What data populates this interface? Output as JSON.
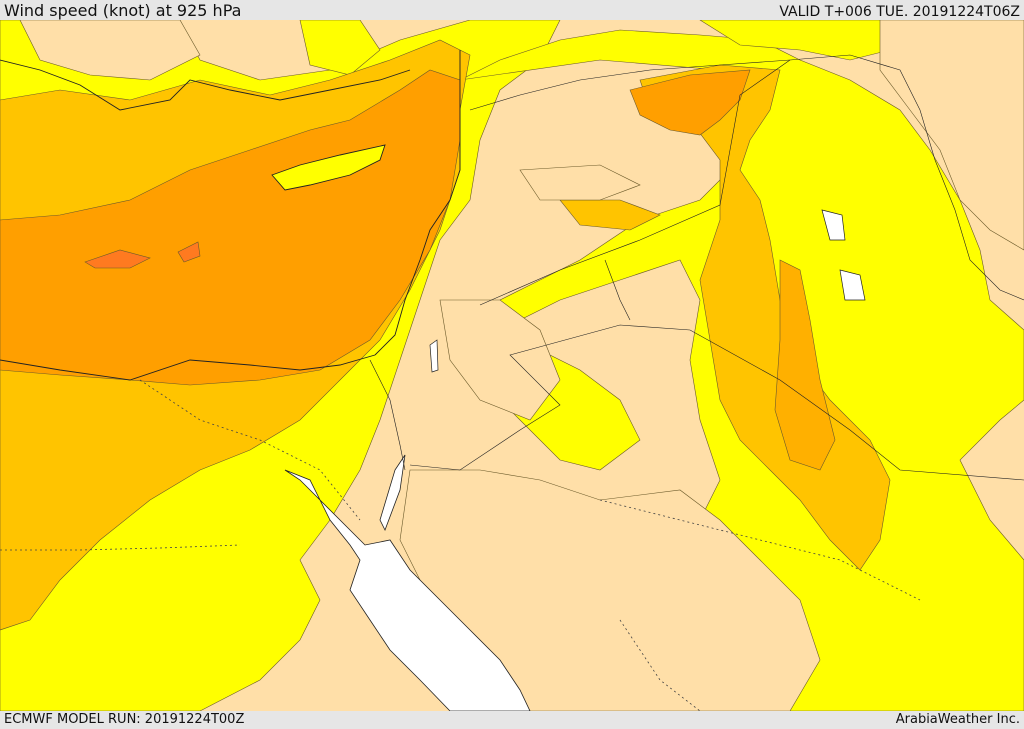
{
  "header": {
    "title": "Wind speed (knot) at 925 hPa",
    "valid_time": "VALID T+006 TUE. 20191224T06Z"
  },
  "footer": {
    "model_run": "ECMWF MODEL RUN: 20191224T00Z",
    "credit": "ArabiaWeather Inc."
  },
  "colors": {
    "calm": "#ffdfa8",
    "light": "#ffff00",
    "moderate": "#ffc400",
    "strong": "#ff9f00",
    "very_strong": "#ff7a20",
    "sea_white": "#ffffff",
    "contour": "#6b5a2a",
    "border": "#222222"
  }
}
